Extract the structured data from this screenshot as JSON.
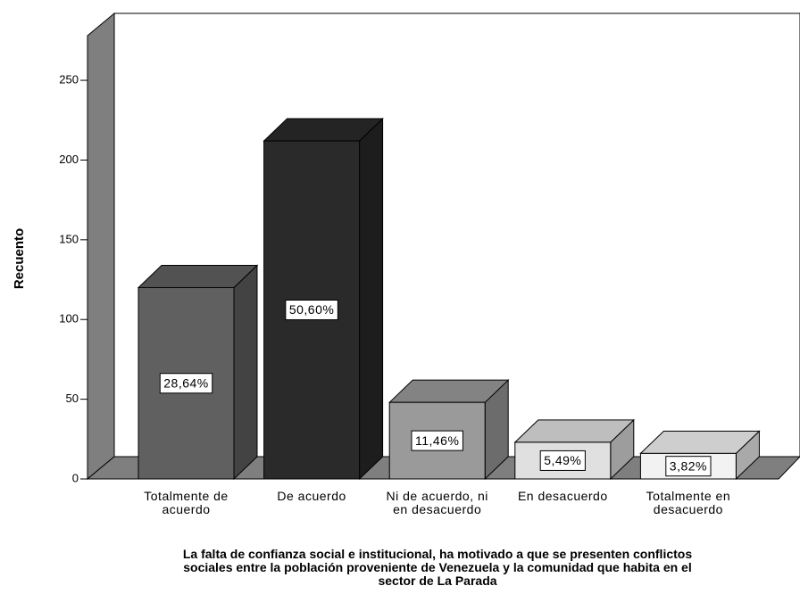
{
  "chart_data": {
    "type": "bar3d",
    "y_axis_label": "Recuento",
    "x_axis_label": "La falta de confianza social e institucional, ha motivado a que se presenten conflictos sociales entre la población proveniente de Venezuela y la comunidad que habita en el sector de La Parada",
    "categories": [
      "Totalmente de acuerdo",
      "De acuerdo",
      "Ni de acuerdo, ni en desacuerdo",
      "En desacuerdo",
      "Totalmente en desacuerdo"
    ],
    "values": [
      120,
      212,
      48,
      23,
      16
    ],
    "data_labels": [
      "28,64%",
      "50,60%",
      "11,46%",
      "5,49%",
      "3,82%"
    ],
    "colors": [
      "#606060",
      "#2a2a2a",
      "#9a9a9a",
      "#e0e0e0",
      "#f2f2f2"
    ],
    "ylim": [
      0,
      278
    ],
    "yticks": [
      0,
      50,
      100,
      150,
      200,
      250
    ],
    "grid": false
  }
}
